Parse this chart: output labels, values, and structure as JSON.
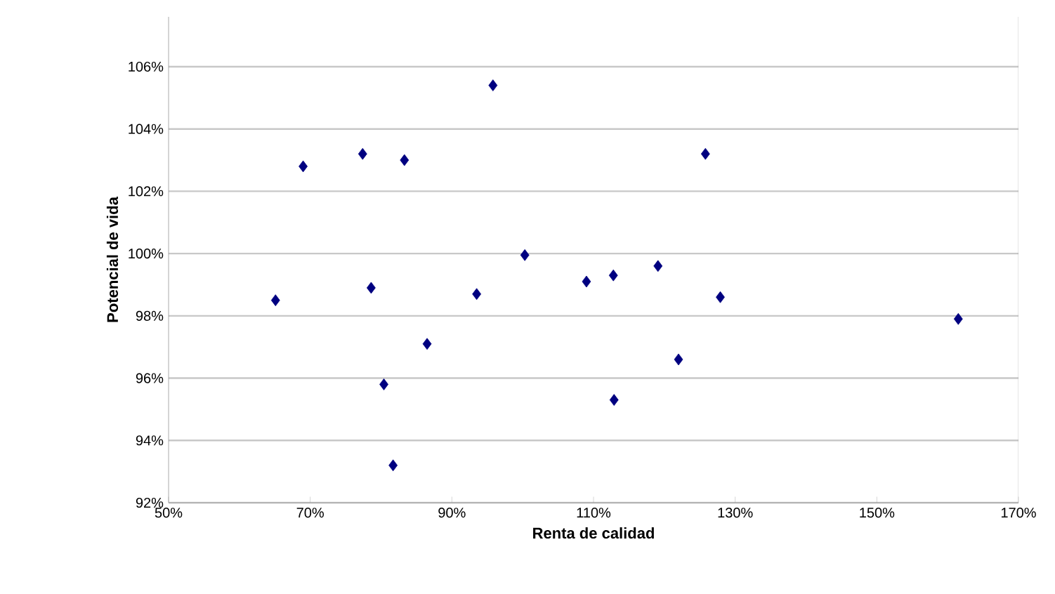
{
  "chart_data": {
    "type": "scatter",
    "xlabel": "Renta de calidad",
    "ylabel": "Potencial de vida",
    "x": [
      95.8,
      69.0,
      77.4,
      83.3,
      100.3,
      109.0,
      112.8,
      65.1,
      78.6,
      93.5,
      86.5,
      80.4,
      112.9,
      81.7,
      125.8,
      119.1,
      127.9,
      122.0,
      161.5
    ],
    "values": [
      105.4,
      102.8,
      103.2,
      103.0,
      99.95,
      99.1,
      99.3,
      98.5,
      98.9,
      98.7,
      97.1,
      95.8,
      95.3,
      93.2,
      103.2,
      99.6,
      98.6,
      96.6,
      97.9
    ],
    "color": "#000080",
    "marker": "diamond",
    "grid": "y",
    "xlim": [
      50,
      170
    ],
    "xticks": [
      {
        "value": 50,
        "label": "50%"
      },
      {
        "value": 70,
        "label": "70%"
      },
      {
        "value": 90,
        "label": "90%"
      },
      {
        "value": 110,
        "label": "110%"
      },
      {
        "value": 130,
        "label": "130%"
      },
      {
        "value": 150,
        "label": "150%"
      },
      {
        "value": 170,
        "label": "170%"
      }
    ],
    "ylim": [
      92,
      107.6
    ],
    "yticks": [
      {
        "value": 92,
        "label": "92%"
      },
      {
        "value": 94,
        "label": "94%"
      },
      {
        "value": 96,
        "label": "96%"
      },
      {
        "value": 98,
        "label": "98%"
      },
      {
        "value": 100,
        "label": "100%"
      },
      {
        "value": 102,
        "label": "102%"
      },
      {
        "value": 104,
        "label": "104%"
      },
      {
        "value": 106,
        "label": "106%"
      }
    ]
  }
}
